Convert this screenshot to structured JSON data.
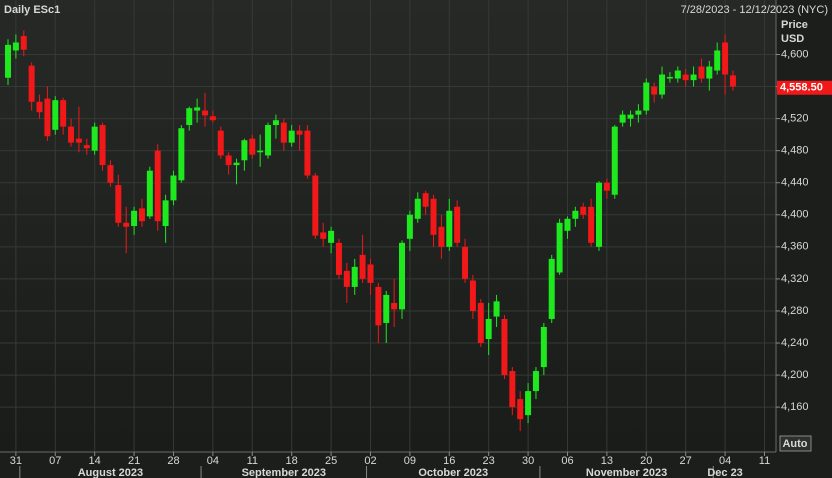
{
  "chart_data": {
    "type": "candlestick",
    "title": "Daily ESc1",
    "subtitle": "7/28/2023 - 12/12/2023 (NYC)",
    "y_label": "Price",
    "y_unit": "USD",
    "auto_button": "Auto",
    "up_color": "#1ee81e",
    "down_color": "#f01818",
    "grid": true,
    "x": [
      "2023-07-28",
      "2023-07-31",
      "2023-08-01",
      "2023-08-02",
      "2023-08-03",
      "2023-08-04",
      "2023-08-07",
      "2023-08-08",
      "2023-08-09",
      "2023-08-10",
      "2023-08-11",
      "2023-08-14",
      "2023-08-15",
      "2023-08-16",
      "2023-08-17",
      "2023-08-18",
      "2023-08-21",
      "2023-08-22",
      "2023-08-23",
      "2023-08-24",
      "2023-08-25",
      "2023-08-28",
      "2023-08-29",
      "2023-08-30",
      "2023-08-31",
      "2023-09-01",
      "2023-09-04",
      "2023-09-05",
      "2023-09-06",
      "2023-09-07",
      "2023-09-08",
      "2023-09-11",
      "2023-09-12",
      "2023-09-13",
      "2023-09-14",
      "2023-09-15",
      "2023-09-18",
      "2023-09-19",
      "2023-09-20",
      "2023-09-21",
      "2023-09-22",
      "2023-09-25",
      "2023-09-26",
      "2023-09-27",
      "2023-09-28",
      "2023-09-29",
      "2023-10-02",
      "2023-10-03",
      "2023-10-04",
      "2023-10-05",
      "2023-10-06",
      "2023-10-09",
      "2023-10-10",
      "2023-10-11",
      "2023-10-12",
      "2023-10-13",
      "2023-10-16",
      "2023-10-17",
      "2023-10-18",
      "2023-10-19",
      "2023-10-20",
      "2023-10-23",
      "2023-10-24",
      "2023-10-25",
      "2023-10-26",
      "2023-10-27",
      "2023-10-30",
      "2023-10-31",
      "2023-11-01",
      "2023-11-02",
      "2023-11-03",
      "2023-11-06",
      "2023-11-07",
      "2023-11-08",
      "2023-11-09",
      "2023-11-10",
      "2023-11-13",
      "2023-11-14",
      "2023-11-15",
      "2023-11-16",
      "2023-11-17",
      "2023-11-20",
      "2023-11-21",
      "2023-11-22",
      "2023-11-23",
      "2023-11-24",
      "2023-11-27",
      "2023-11-28",
      "2023-11-29",
      "2023-11-30",
      "2023-12-01",
      "2023-12-04",
      "2023-12-05"
    ],
    "open": [
      4571,
      4605,
      4623,
      4586,
      4541,
      4545,
      4506,
      4543,
      4510,
      4495,
      4487,
      4480,
      4512,
      4462,
      4437,
      4390,
      4386,
      4408,
      4398,
      4480,
      4386,
      4418,
      4443,
      4512,
      4530,
      4530,
      4523,
      4505,
      4474,
      4462,
      4468,
      4495,
      4478,
      4474,
      4512,
      4515,
      4490,
      4505,
      4505,
      4449,
      4378,
      4365,
      4365,
      4330,
      4310,
      4350,
      4338,
      4310,
      4265,
      4290,
      4282,
      4370,
      4395,
      4427,
      4420,
      4385,
      4360,
      4410,
      4360,
      4318,
      4290,
      4245,
      4273,
      4270,
      4205,
      4170,
      4150,
      4180,
      4210,
      4270,
      4328,
      4380,
      4395,
      4410,
      4410,
      4360,
      4440,
      4425,
      4515,
      4520,
      4525,
      4530,
      4560,
      4550,
      4570,
      4570,
      4575,
      4568,
      4585,
      4570,
      4580,
      4615,
      4574
    ],
    "high": [
      4619,
      4625,
      4630,
      4590,
      4550,
      4560,
      4548,
      4546,
      4520,
      4535,
      4495,
      4515,
      4515,
      4468,
      4450,
      4410,
      4410,
      4420,
      4460,
      4488,
      4425,
      4455,
      4512,
      4535,
      4545,
      4552,
      4530,
      4510,
      4478,
      4470,
      4495,
      4500,
      4500,
      4515,
      4525,
      4520,
      4512,
      4512,
      4512,
      4452,
      4390,
      4385,
      4370,
      4340,
      4345,
      4375,
      4345,
      4315,
      4305,
      4320,
      4368,
      4405,
      4428,
      4430,
      4425,
      4400,
      4420,
      4418,
      4370,
      4325,
      4295,
      4290,
      4300,
      4275,
      4210,
      4180,
      4190,
      4210,
      4265,
      4350,
      4395,
      4398,
      4410,
      4415,
      4420,
      4442,
      4445,
      4512,
      4530,
      4530,
      4538,
      4570,
      4565,
      4585,
      4578,
      4585,
      4582,
      4585,
      4595,
      4592,
      4615,
      4625,
      4580
    ],
    "low": [
      4562,
      4595,
      4598,
      4530,
      4520,
      4492,
      4500,
      4500,
      4485,
      4478,
      4475,
      4475,
      4455,
      4435,
      4385,
      4352,
      4375,
      4385,
      4395,
      4380,
      4365,
      4412,
      4440,
      4505,
      4515,
      4510,
      4515,
      4470,
      4450,
      4438,
      4455,
      4470,
      4460,
      4470,
      4495,
      4480,
      4485,
      4480,
      4445,
      4370,
      4360,
      4352,
      4320,
      4290,
      4300,
      4315,
      4300,
      4240,
      4240,
      4260,
      4270,
      4355,
      4390,
      4400,
      4360,
      4345,
      4355,
      4360,
      4315,
      4270,
      4235,
      4225,
      4260,
      4195,
      4150,
      4130,
      4140,
      4170,
      4200,
      4265,
      4325,
      4370,
      4385,
      4395,
      4360,
      4355,
      4420,
      4420,
      4510,
      4510,
      4515,
      4525,
      4540,
      4545,
      4565,
      4565,
      4560,
      4560,
      4565,
      4555,
      4575,
      4550,
      4555
    ],
    "close": [
      4612,
      4615,
      4606,
      4541,
      4528,
      4498,
      4543,
      4510,
      4490,
      4490,
      4483,
      4510,
      4462,
      4440,
      4390,
      4385,
      4405,
      4392,
      4455,
      4392,
      4418,
      4449,
      4508,
      4533,
      4534,
      4524,
      4518,
      4474,
      4462,
      4465,
      4493,
      4475,
      4480,
      4512,
      4518,
      4490,
      4505,
      4500,
      4449,
      4374,
      4370,
      4380,
      4325,
      4310,
      4335,
      4320,
      4315,
      4262,
      4300,
      4282,
      4365,
      4400,
      4420,
      4410,
      4375,
      4360,
      4405,
      4365,
      4320,
      4280,
      4240,
      4270,
      4292,
      4200,
      4160,
      4145,
      4180,
      4205,
      4260,
      4345,
      4390,
      4395,
      4405,
      4400,
      4365,
      4440,
      4430,
      4510,
      4525,
      4525,
      4530,
      4565,
      4550,
      4575,
      4572,
      4580,
      4568,
      4575,
      4570,
      4585,
      4605,
      4575,
      4560
    ],
    "last_price": {
      "value": 4558.5,
      "label": "4,558.50"
    },
    "ylim": [
      4104,
      4668
    ],
    "yticks": [
      {
        "value": 4160,
        "label": "4,160"
      },
      {
        "value": 4200,
        "label": "4,200"
      },
      {
        "value": 4240,
        "label": "4,240"
      },
      {
        "value": 4280,
        "label": "4,280"
      },
      {
        "value": 4320,
        "label": "4,320"
      },
      {
        "value": 4360,
        "label": "4,360"
      },
      {
        "value": 4400,
        "label": "4,400"
      },
      {
        "value": 4440,
        "label": "4,440"
      },
      {
        "value": 4480,
        "label": "4,480"
      },
      {
        "value": 4520,
        "label": "4,520"
      },
      {
        "value": 4560,
        "label": "4,560"
      },
      {
        "value": 4600,
        "label": "4,600"
      }
    ],
    "xticks": [
      {
        "value": "2023-07-31",
        "label": "31"
      },
      {
        "value": "2023-08-07",
        "label": "07"
      },
      {
        "value": "2023-08-14",
        "label": "14"
      },
      {
        "value": "2023-08-21",
        "label": "21"
      },
      {
        "value": "2023-08-28",
        "label": "28"
      },
      {
        "value": "2023-09-04",
        "label": "04"
      },
      {
        "value": "2023-09-11",
        "label": "11"
      },
      {
        "value": "2023-09-18",
        "label": "18"
      },
      {
        "value": "2023-09-25",
        "label": "25"
      },
      {
        "value": "2023-10-02",
        "label": "02"
      },
      {
        "value": "2023-10-09",
        "label": "09"
      },
      {
        "value": "2023-10-16",
        "label": "16"
      },
      {
        "value": "2023-10-23",
        "label": "23"
      },
      {
        "value": "2023-10-30",
        "label": "30"
      },
      {
        "value": "2023-11-06",
        "label": "06"
      },
      {
        "value": "2023-11-13",
        "label": "13"
      },
      {
        "value": "2023-11-20",
        "label": "20"
      },
      {
        "value": "2023-11-27",
        "label": "27"
      },
      {
        "value": "2023-12-04",
        "label": "04"
      },
      {
        "value": "2023-12-11",
        "label": "11"
      }
    ],
    "months": [
      {
        "value": "2023-08",
        "label": "August 2023"
      },
      {
        "value": "2023-09",
        "label": "September 2023"
      },
      {
        "value": "2023-10",
        "label": "October 2023"
      },
      {
        "value": "2023-11",
        "label": "November 2023"
      },
      {
        "value": "2023-12",
        "label": "Dec 23"
      }
    ]
  }
}
